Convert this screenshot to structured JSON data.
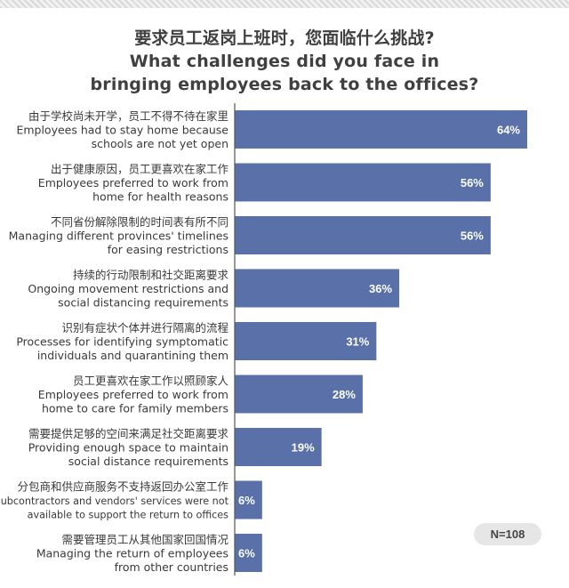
{
  "title": {
    "zh": "要求员工返岗上班时，您面临什么挑战?",
    "en_line1": "What challenges did you face in",
    "en_line2": "bringing employees back to the offices?"
  },
  "n_label": "N=108",
  "colors": {
    "bar": "#5971a8",
    "bar_label": "#ffffff",
    "axis": "#555555",
    "text": "#3a3a3a"
  },
  "chart_data": {
    "type": "bar",
    "orientation": "horizontal",
    "categories": [
      {
        "zh": "由于学校尚未开学，员工不得不待在家里",
        "en": [
          "Employees had to stay home because",
          "schools are not yet open"
        ]
      },
      {
        "zh": "出于健康原因，员工更喜欢在家工作",
        "en": [
          "Employees preferred to work from",
          "home for health reasons"
        ]
      },
      {
        "zh": "不同省份解除限制的时间表有所不同",
        "en": [
          "Managing different provinces' timelines",
          "for easing restrictions"
        ]
      },
      {
        "zh": "持续的行动限制和社交距离要求",
        "en": [
          "Ongoing movement restrictions and",
          "social distancing requirements"
        ]
      },
      {
        "zh": "识别有症状个体并进行隔离的流程",
        "en": [
          "Processes for identifying symptomatic",
          "individuals and quarantining them"
        ]
      },
      {
        "zh": "员工更喜欢在家工作以照顾家人",
        "en": [
          "Employees preferred to work from",
          "home to care for family members"
        ]
      },
      {
        "zh": "需要提供足够的空间来满足社交距离要求",
        "en": [
          "Providing enough space to maintain",
          "social distance requirements"
        ]
      },
      {
        "zh": "分包商和供应商服务不支持返回办公室工作",
        "en": [
          "Subcontractors and vendors' services were not",
          "available to support the return to offices"
        ]
      },
      {
        "zh": "需要管理员工从其他国家回国情况",
        "en": [
          "Managing the return of employees",
          "from other countries"
        ]
      }
    ],
    "values": [
      64,
      56,
      56,
      36,
      31,
      28,
      19,
      6,
      6
    ],
    "value_labels": [
      "64%",
      "56%",
      "56%",
      "36%",
      "31%",
      "28%",
      "19%",
      "6%",
      "6%"
    ],
    "xlim": [
      0,
      64
    ],
    "grid": false,
    "legend": "none"
  }
}
